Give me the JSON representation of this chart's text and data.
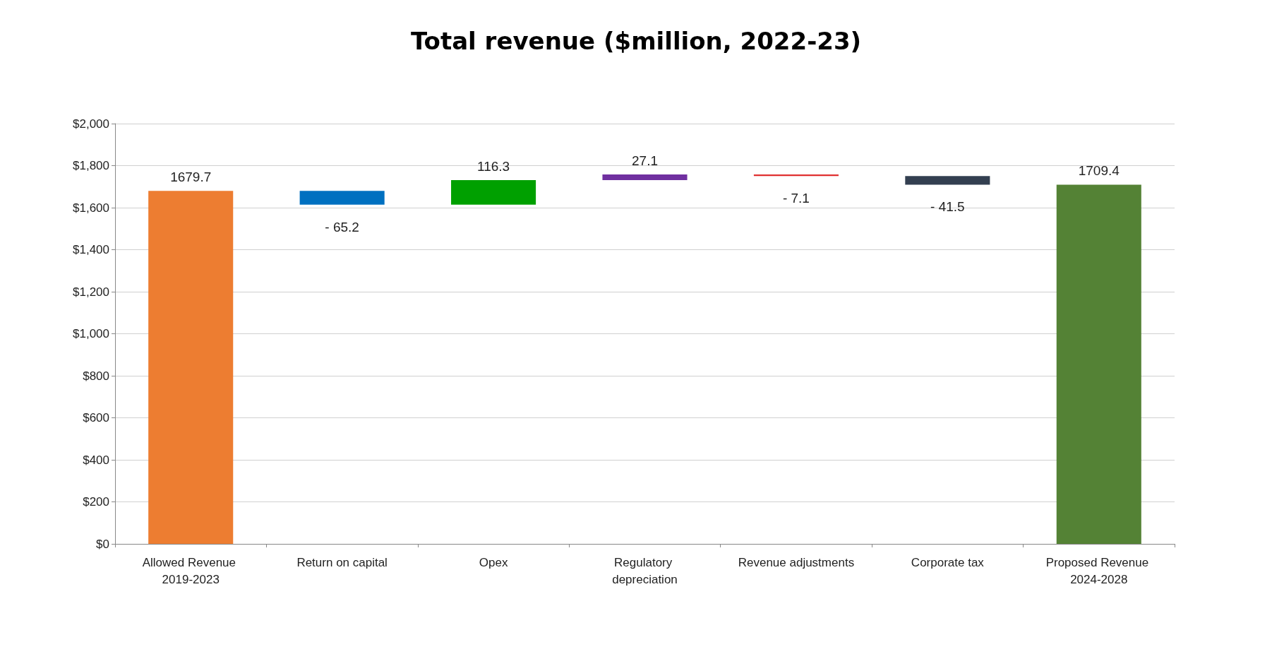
{
  "chart_data": {
    "type": "bar",
    "title": "Total revenue ($million, 2022-23)",
    "categories": [
      "Allowed Revenue 2019-2023",
      "Return on capital",
      "Opex",
      "Regulatory depreciation",
      "Revenue adjustments",
      "Corporate tax",
      "Proposed Revenue 2024-2028"
    ],
    "values": [
      1679.7,
      -65.2,
      116.3,
      27.1,
      -7.1,
      -41.5,
      1709.4
    ],
    "base": [
      0,
      1679.7,
      1614.5,
      1730.8,
      1757.9,
      1750.8,
      0
    ],
    "value_labels": [
      "1679.7",
      "- 65.2",
      "116.3",
      "27.1",
      "- 7.1",
      "- 41.5",
      "1709.4"
    ],
    "colors": [
      "#ed7d31",
      "#0070c0",
      "#00a000",
      "#7030a0",
      "#e03030",
      "#333f50",
      "#548235"
    ],
    "ylim": [
      0,
      2000
    ],
    "yticks": [
      {
        "value": 0,
        "label": "$0"
      },
      {
        "value": 200,
        "label": "$200"
      },
      {
        "value": 400,
        "label": "$400"
      },
      {
        "value": 600,
        "label": "$600"
      },
      {
        "value": 800,
        "label": "$800"
      },
      {
        "value": 1000,
        "label": "$1,000"
      },
      {
        "value": 1200,
        "label": "$1,200"
      },
      {
        "value": 1400,
        "label": "$1,400"
      },
      {
        "value": 1600,
        "label": "$1,600"
      },
      {
        "value": 1800,
        "label": "$1,800"
      },
      {
        "value": 2000,
        "label": "$2,000"
      }
    ],
    "grid": "y"
  }
}
